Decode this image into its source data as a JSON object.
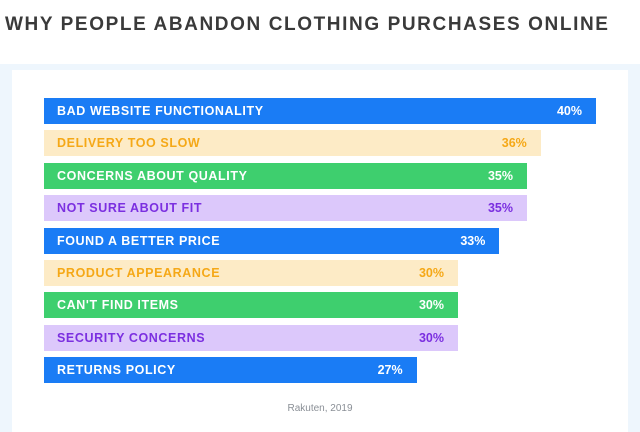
{
  "title": "WHY PEOPLE ABANDON CLOTHING PURCHASES ONLINE",
  "source": "Rakuten, 2019",
  "colors": {
    "blue": {
      "bar": "#1a7cf5",
      "text": "#ffffff"
    },
    "cream": {
      "bar": "#fdebc6",
      "text": "#f5a817"
    },
    "green": {
      "bar": "#3ecf6e",
      "text": "#ffffff"
    },
    "lavender": {
      "bar": "#dcc8fb",
      "text": "#7b2fe0"
    }
  },
  "chart_data": {
    "type": "bar",
    "orientation": "horizontal",
    "title": "WHY PEOPLE ABANDON CLOTHING PURCHASES ONLINE",
    "categories": [
      "BAD WEBSITE FUNCTIONALITY",
      "DELIVERY TOO SLOW",
      "CONCERNS ABOUT QUALITY",
      "NOT SURE ABOUT FIT",
      "FOUND A BETTER PRICE",
      "PRODUCT APPEARANCE",
      "CAN'T FIND ITEMS",
      "SECURITY CONCERNS",
      "RETURNS POLICY"
    ],
    "values": [
      40,
      36,
      35,
      35,
      33,
      30,
      30,
      30,
      27
    ],
    "value_labels": [
      "40%",
      "36%",
      "35%",
      "35%",
      "33%",
      "30%",
      "30%",
      "30%",
      "27%"
    ],
    "bar_colors": [
      "blue",
      "cream",
      "green",
      "lavender",
      "blue",
      "cream",
      "green",
      "lavender",
      "blue"
    ],
    "unit": "%",
    "xlim": [
      0,
      40
    ],
    "grid": false
  }
}
